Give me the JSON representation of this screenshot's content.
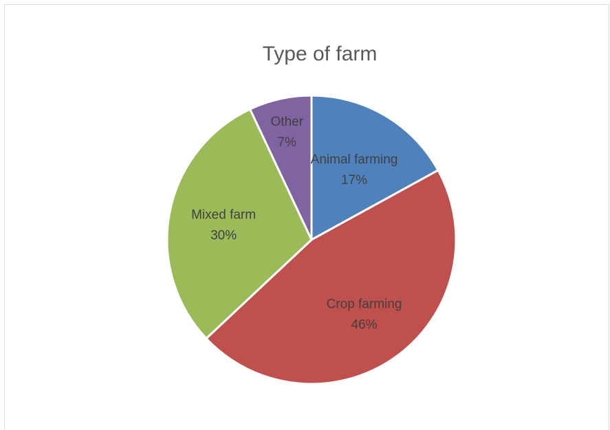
{
  "chart_data": {
    "type": "pie",
    "title": "Type of farm",
    "slices": [
      {
        "label": "Animal farming",
        "value": 17,
        "percent_label": "17%",
        "color": "#4f81bd"
      },
      {
        "label": "Crop farming",
        "value": 46,
        "percent_label": "46%",
        "color": "#c0504d"
      },
      {
        "label": "Mixed farm",
        "value": 30,
        "percent_label": "30%",
        "color": "#9bbb59"
      },
      {
        "label": "Other",
        "value": 7,
        "percent_label": "7%",
        "color": "#8064a2"
      }
    ],
    "legend": "none",
    "data_labels": "category and percentage inside slices"
  }
}
